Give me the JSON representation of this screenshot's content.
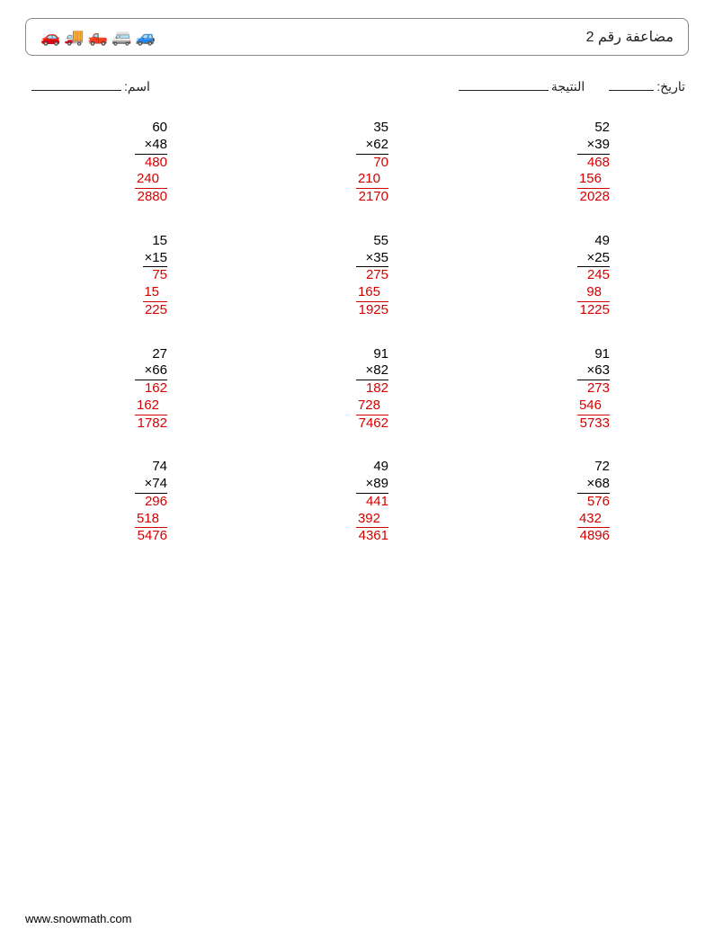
{
  "title": "مضاعفة رقم 2",
  "labels": {
    "name": "اسم:",
    "date": "تاريخ:",
    "result": "النتيجة"
  },
  "footer": "www.snowmath.com",
  "colors": {
    "text": "#222222",
    "answer": "#d40000",
    "border": "#888888",
    "background": "#ffffff"
  },
  "underline_widths": {
    "name": 100,
    "result": 100,
    "date": 50
  },
  "problems": [
    [
      {
        "a": "60",
        "b": "48",
        "p1": "480",
        "p2": "240",
        "result": "2880"
      },
      {
        "a": "35",
        "b": "62",
        "p1": "70",
        "p2": "210",
        "result": "2170"
      },
      {
        "a": "52",
        "b": "39",
        "p1": "468",
        "p2": "156",
        "result": "2028"
      }
    ],
    [
      {
        "a": "15",
        "b": "15",
        "p1": "75",
        "p2": "15",
        "result": "225"
      },
      {
        "a": "55",
        "b": "35",
        "p1": "275",
        "p2": "165",
        "result": "1925"
      },
      {
        "a": "49",
        "b": "25",
        "p1": "245",
        "p2": "98",
        "result": "1225"
      }
    ],
    [
      {
        "a": "27",
        "b": "66",
        "p1": "162",
        "p2": "162",
        "result": "1782"
      },
      {
        "a": "91",
        "b": "82",
        "p1": "182",
        "p2": "728",
        "result": "7462"
      },
      {
        "a": "91",
        "b": "63",
        "p1": "273",
        "p2": "546",
        "result": "5733"
      }
    ],
    [
      {
        "a": "74",
        "b": "74",
        "p1": "296",
        "p2": "518",
        "result": "5476"
      },
      {
        "a": "49",
        "b": "89",
        "p1": "441",
        "p2": "392",
        "result": "4361"
      },
      {
        "a": "72",
        "b": "68",
        "p1": "576",
        "p2": "432",
        "result": "4896"
      }
    ]
  ]
}
